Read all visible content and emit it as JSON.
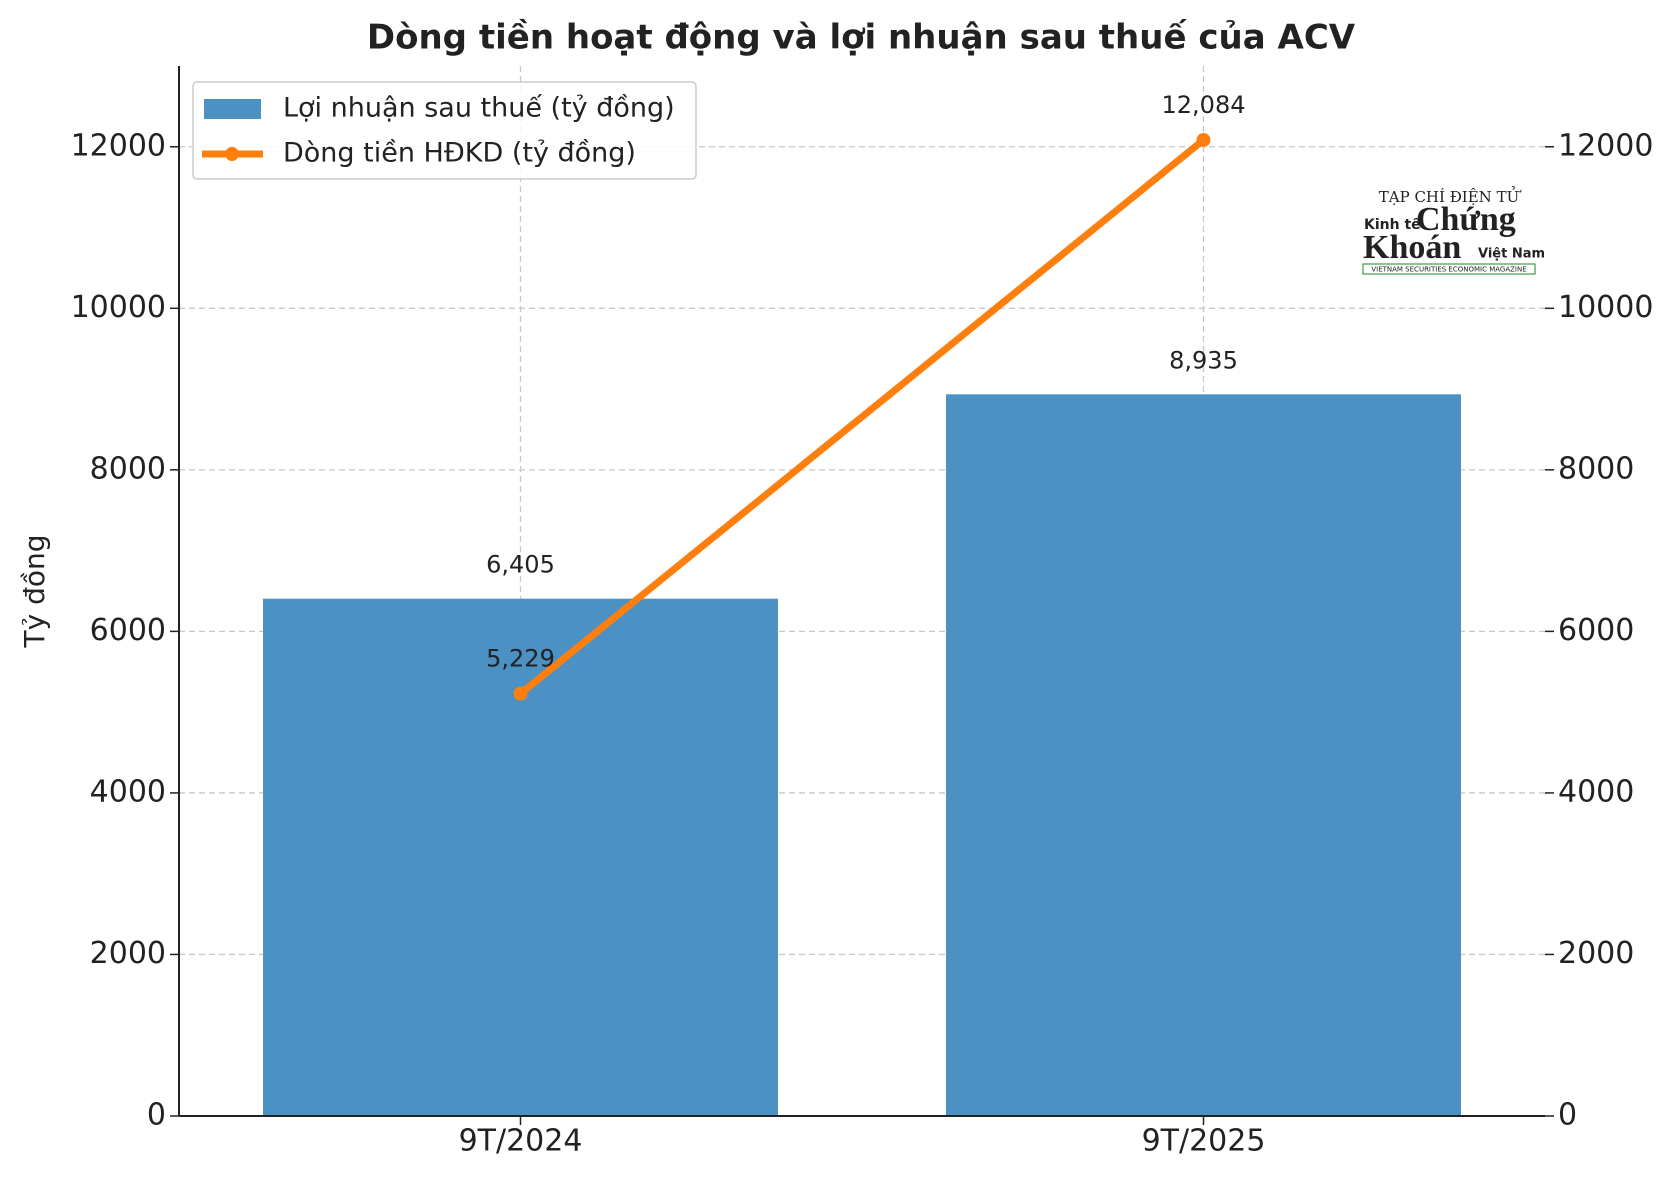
{
  "chart_data": {
    "type": "bar",
    "title": "Dòng tiền hoạt động và lợi nhuận sau thuế của ACV",
    "y_label": "Tỷ đồng",
    "categories": [
      "9T/2024",
      "9T/2025"
    ],
    "series": [
      {
        "name": "Lợi nhuận sau thuế (tỷ đồng)",
        "type": "bar",
        "color": "#4c91c3",
        "values": [
          6405,
          8935
        ],
        "value_labels": [
          "6,405",
          "8,935"
        ]
      },
      {
        "name": "Dòng tiền HĐKD (tỷ đồng)",
        "type": "line",
        "axis": "y2",
        "color": "#ff7f0e",
        "values": [
          5229,
          12084
        ],
        "value_labels": [
          "5,229",
          "12,084"
        ]
      }
    ],
    "ylim": [
      0,
      13000
    ],
    "yticks": [
      0,
      2000,
      4000,
      6000,
      8000,
      10000,
      12000
    ],
    "y2lim": [
      0,
      13000
    ],
    "y2ticks": [
      0,
      2000,
      4000,
      6000,
      8000,
      10000,
      12000
    ],
    "grid": true,
    "legend": "upper left"
  },
  "logo": {
    "top": "TẠP CHÍ ĐIỆN TỬ",
    "left": "Kinh tế",
    "main1": "Chứng",
    "main2": "Khoán",
    "right": "Việt Nam",
    "bottom": "VIETNAM SECURITIES ECONOMIC MAGAZINE"
  }
}
